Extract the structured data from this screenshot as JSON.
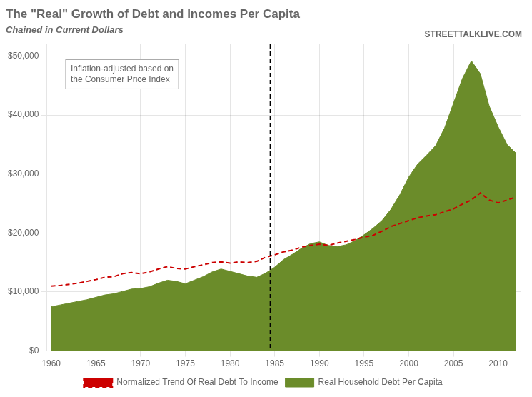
{
  "chart_data": {
    "type": "line",
    "title": "The \"Real\" Growth of Debt and Incomes Per Capita",
    "subtitle": "Chained in Current Dollars",
    "annotations": [
      "Inflation-adjusted based on\nthe Consumer Price Index",
      "STREETTALKLIVE.COM"
    ],
    "x": [
      1960,
      1961,
      1962,
      1963,
      1964,
      1965,
      1966,
      1967,
      1968,
      1969,
      1970,
      1971,
      1972,
      1973,
      1974,
      1975,
      1976,
      1977,
      1978,
      1979,
      1980,
      1981,
      1982,
      1983,
      1984,
      1985,
      1986,
      1987,
      1988,
      1989,
      1990,
      1991,
      1992,
      1993,
      1994,
      1995,
      1996,
      1997,
      1998,
      1999,
      2000,
      2001,
      2002,
      2003,
      2004,
      2005,
      2006,
      2007,
      2008,
      2009,
      2010,
      2011,
      2012
    ],
    "series": [
      {
        "name": "Real Household Debt Per Capita",
        "type": "area",
        "color": "#6b8c2a",
        "values": [
          7500,
          7800,
          8100,
          8400,
          8700,
          9100,
          9500,
          9700,
          10100,
          10500,
          10600,
          10900,
          11500,
          12000,
          11800,
          11400,
          12000,
          12600,
          13400,
          13900,
          13500,
          13100,
          12700,
          12500,
          13200,
          14200,
          15500,
          16400,
          17400,
          18200,
          18500,
          17900,
          17700,
          18000,
          18700,
          19700,
          20800,
          22100,
          24000,
          26500,
          29500,
          31700,
          33200,
          34800,
          37800,
          42000,
          46200,
          49200,
          47000,
          41500,
          38000,
          35000,
          33500
        ]
      },
      {
        "name": "Normalized Trend Of Real Debt To Income",
        "type": "line",
        "color": "#cc0000",
        "line_style": "dashed",
        "values": [
          11000,
          11100,
          11300,
          11500,
          11800,
          12100,
          12500,
          12600,
          13100,
          13300,
          13100,
          13400,
          13900,
          14300,
          14000,
          13900,
          14300,
          14600,
          15000,
          15100,
          14900,
          15100,
          15000,
          15200,
          15900,
          16300,
          16800,
          17100,
          17600,
          17900,
          18100,
          17900,
          18300,
          18600,
          18900,
          19300,
          19600,
          20300,
          21100,
          21600,
          22100,
          22600,
          22900,
          23100,
          23600,
          24100,
          24900,
          25600,
          26800,
          25600,
          25100,
          25600,
          26100
        ]
      }
    ],
    "vlines": [
      {
        "x": 1984.5,
        "color": "#000000",
        "line_style": "dashed"
      }
    ],
    "xlim": [
      1959.5,
      2012.5
    ],
    "xticks": [
      1960,
      1965,
      1970,
      1975,
      1980,
      1985,
      1990,
      1995,
      2000,
      2005,
      2010
    ],
    "ylim": [
      0,
      52000
    ],
    "yticks": [
      {
        "value": 0,
        "label": "$0"
      },
      {
        "value": 10000,
        "label": "$10,000"
      },
      {
        "value": 20000,
        "label": "$20,000"
      },
      {
        "value": 30000,
        "label": "$30,000"
      },
      {
        "value": 40000,
        "label": "$40,000"
      },
      {
        "value": 50000,
        "label": "$50,000"
      }
    ],
    "grid": true,
    "legend": "bottom"
  }
}
